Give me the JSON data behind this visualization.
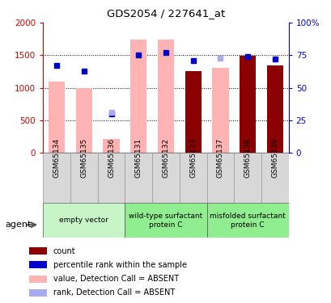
{
  "title": "GDS2054 / 227641_at",
  "categories": [
    "GSM65134",
    "GSM65135",
    "GSM65136",
    "GSM65131",
    "GSM65132",
    "GSM65133",
    "GSM65137",
    "GSM65138",
    "GSM65139"
  ],
  "bar_values": [
    null,
    null,
    null,
    null,
    null,
    1260,
    null,
    1490,
    1340
  ],
  "bar_color": "#8b0000",
  "pink_bar_values": [
    1100,
    1000,
    220,
    1740,
    1740,
    null,
    1310,
    null,
    null
  ],
  "pink_bar_color": "#ffb3b3",
  "blue_dot_values": [
    67,
    63,
    30,
    75,
    77,
    71,
    null,
    74,
    72
  ],
  "blue_dot_color": "#0000cc",
  "light_blue_dot_values": [
    null,
    null,
    31,
    null,
    null,
    null,
    73,
    null,
    null
  ],
  "light_blue_dot_color": "#aaaaee",
  "ylim_left": [
    0,
    2000
  ],
  "ylim_right": [
    0,
    100
  ],
  "yticks_left": [
    0,
    500,
    1000,
    1500,
    2000
  ],
  "ytick_labels_left": [
    "0",
    "500",
    "1000",
    "1500",
    "2000"
  ],
  "yticks_right": [
    0,
    25,
    50,
    75,
    100
  ],
  "ytick_labels_right": [
    "0",
    "25",
    "50",
    "75",
    "100%"
  ],
  "left_axis_color": "#cc0000",
  "right_axis_color": "#0000cc",
  "grid_lines": [
    500,
    1000,
    1500
  ],
  "group_configs": [
    {
      "label": "empty vector",
      "start": 0,
      "end": 2,
      "color": "#c8f5c8"
    },
    {
      "label": "wild-type surfactant\nprotein C",
      "start": 3,
      "end": 5,
      "color": "#90ee90"
    },
    {
      "label": "misfolded surfactant\nprotein C",
      "start": 6,
      "end": 8,
      "color": "#90ee90"
    }
  ],
  "legend_items": [
    {
      "label": "count",
      "color": "#8b0000"
    },
    {
      "label": "percentile rank within the sample",
      "color": "#0000cc"
    },
    {
      "label": "value, Detection Call = ABSENT",
      "color": "#ffb3b3"
    },
    {
      "label": "rank, Detection Call = ABSENT",
      "color": "#aaaaee"
    }
  ],
  "bar_width": 0.6
}
